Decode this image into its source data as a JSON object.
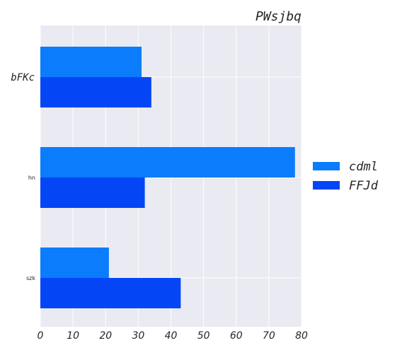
{
  "chart_data": {
    "type": "bar",
    "orientation": "horizontal",
    "title": "PWsjbq",
    "xlabel": "",
    "ylabel": "",
    "categories": [
      "bFKc",
      "hn",
      "szk"
    ],
    "series": [
      {
        "name": "cdml",
        "values": [
          31,
          78,
          21
        ],
        "color": "#0a7cfc"
      },
      {
        "name": "FFJd",
        "values": [
          34,
          32,
          43
        ],
        "color": "#0446f5"
      }
    ],
    "xlim": [
      0,
      80
    ],
    "xticks": [
      "0",
      "10",
      "20",
      "30",
      "40",
      "50",
      "60",
      "70",
      "80"
    ],
    "grid": true,
    "legend_position": "right",
    "background_color": "#e9eaf2",
    "grid_color": "#ffffff"
  }
}
